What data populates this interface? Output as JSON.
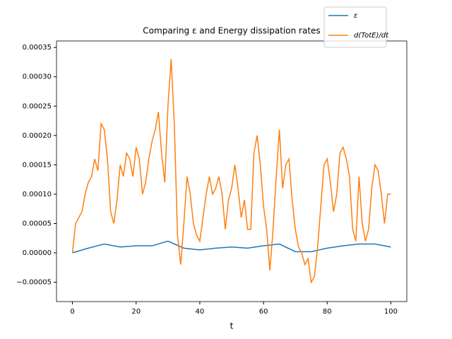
{
  "chart_data": {
    "type": "line",
    "title": "Comparing ε and Energy dissipation rates",
    "xlabel": "t",
    "xlim": [
      -5,
      105
    ],
    "xticks": [
      0,
      20,
      40,
      60,
      80,
      100
    ],
    "ylim": [
      -8.3e-05,
      0.000361
    ],
    "yticks": [
      {
        "value": -5e-05,
        "label": "−0.00005"
      },
      {
        "value": 0,
        "label": "0.00000"
      },
      {
        "value": 5e-05,
        "label": "0.00005"
      },
      {
        "value": 0.0001,
        "label": "0.00010"
      },
      {
        "value": 0.00015,
        "label": "0.00015"
      },
      {
        "value": 0.0002,
        "label": "0.00020"
      },
      {
        "value": 0.00025,
        "label": "0.00025"
      },
      {
        "value": 0.0003,
        "label": "0.00030"
      },
      {
        "value": 0.00035,
        "label": "0.00035"
      }
    ],
    "legend": "upper right",
    "series": [
      {
        "name": "ε",
        "color": "#1f77b4",
        "x": [
          0,
          5,
          10,
          15,
          20,
          25,
          30,
          35,
          40,
          45,
          50,
          55,
          60,
          65,
          70,
          75,
          80,
          85,
          90,
          95,
          100
        ],
        "values": [
          0,
          8e-06,
          1.5e-05,
          1e-05,
          1.2e-05,
          1.2e-05,
          2e-05,
          8e-06,
          5e-06,
          8e-06,
          1e-05,
          8e-06,
          1.2e-05,
          1.5e-05,
          2e-06,
          2e-06,
          8e-06,
          1.2e-05,
          1.5e-05,
          1.5e-05,
          1e-05
        ]
      },
      {
        "name": "d(TotE)/dt",
        "color": "#ff7f0e",
        "x": [
          0,
          1,
          2,
          3,
          4,
          5,
          6,
          7,
          8,
          9,
          10,
          11,
          12,
          13,
          14,
          15,
          16,
          17,
          18,
          19,
          20,
          21,
          22,
          23,
          24,
          25,
          26,
          27,
          28,
          29,
          30,
          31,
          32,
          33,
          34,
          35,
          36,
          37,
          38,
          39,
          40,
          41,
          42,
          43,
          44,
          45,
          46,
          47,
          48,
          49,
          50,
          51,
          52,
          53,
          54,
          55,
          56,
          57,
          58,
          59,
          60,
          61,
          62,
          63,
          64,
          65,
          66,
          67,
          68,
          69,
          70,
          71,
          72,
          73,
          74,
          75,
          76,
          77,
          78,
          79,
          80,
          81,
          82,
          83,
          84,
          85,
          86,
          87,
          88,
          89,
          90,
          91,
          92,
          93,
          94,
          95,
          96,
          97,
          98,
          99,
          100
        ],
        "values": [
          0,
          5e-05,
          6e-05,
          7e-05,
          0.0001,
          0.00012,
          0.00013,
          0.00016,
          0.00014,
          0.00022,
          0.00021,
          0.00016,
          7e-05,
          5e-05,
          9e-05,
          0.00015,
          0.00013,
          0.00017,
          0.00016,
          0.00013,
          0.00018,
          0.00016,
          0.0001,
          0.00012,
          0.00016,
          0.00019,
          0.00021,
          0.00024,
          0.00017,
          0.00012,
          0.00025,
          0.00033,
          0.00022,
          3e-05,
          -2e-05,
          5e-05,
          0.00013,
          0.0001,
          5e-05,
          3e-05,
          2e-05,
          6e-05,
          0.0001,
          0.00013,
          0.0001,
          0.00011,
          0.00013,
          0.0001,
          4e-05,
          9e-05,
          0.00011,
          0.00015,
          0.00011,
          6e-05,
          9e-05,
          4e-05,
          4e-05,
          0.00017,
          0.0002,
          0.00015,
          8e-05,
          4e-05,
          -3e-05,
          4e-05,
          0.00013,
          0.00021,
          0.00011,
          0.00015,
          0.00016,
          9e-05,
          4e-05,
          1e-05,
          0,
          -2e-05,
          -1e-05,
          -5e-05,
          -4e-05,
          1e-05,
          8e-05,
          0.00015,
          0.00016,
          0.00012,
          7e-05,
          0.0001,
          0.00017,
          0.00018,
          0.00016,
          0.00013,
          4e-05,
          2e-05,
          0.00013,
          5e-05,
          2e-05,
          4e-05,
          0.00011,
          0.00015,
          0.00014,
          0.0001,
          5e-05,
          0.0001,
          0.0001
        ]
      }
    ]
  }
}
